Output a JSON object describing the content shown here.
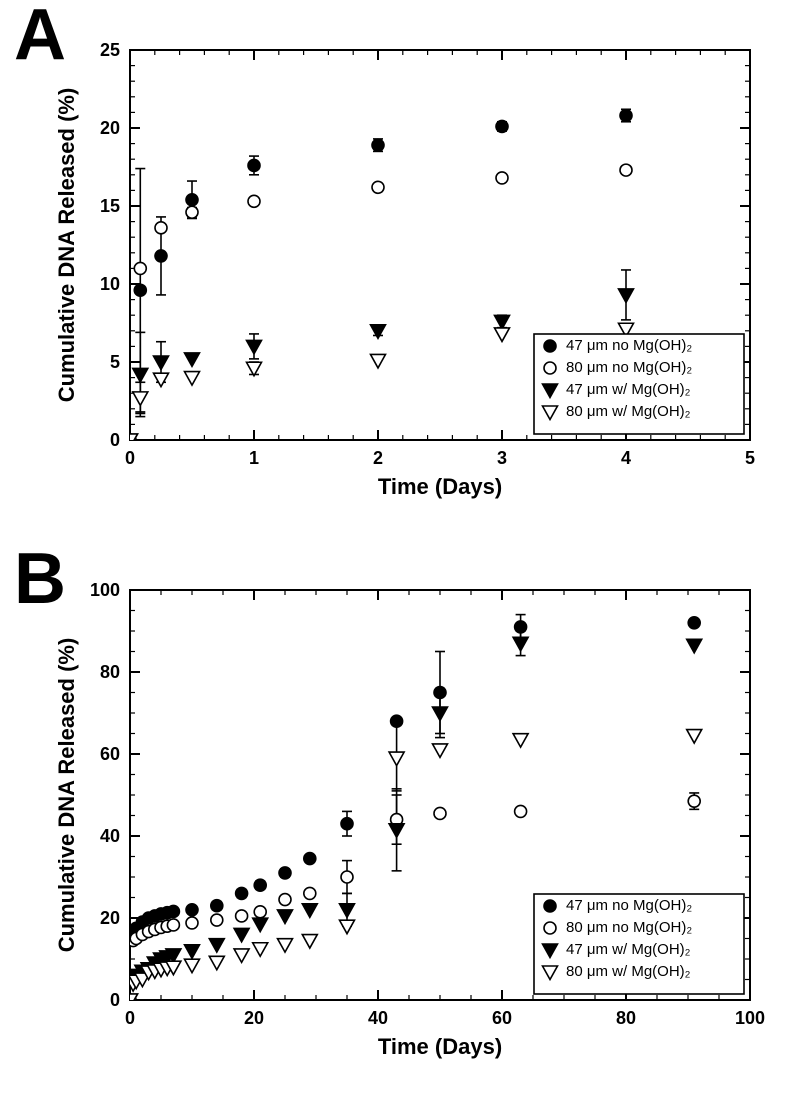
{
  "panel_labels": {
    "A": "A",
    "B": "B",
    "fontsize": 72,
    "fontweight": 900,
    "color": "#000000"
  },
  "chartA": {
    "type": "scatter",
    "title": "",
    "xlabel": "Time (Days)",
    "ylabel": "Cumulative DNA Released (%)",
    "label_fontsize": 22,
    "tick_fontsize": 18,
    "xlim": [
      0,
      5
    ],
    "xtick_step": 1,
    "ylim": [
      0,
      25
    ],
    "ytick_step": 5,
    "axis_color": "#000000",
    "background_color": "#ffffff",
    "minor_ticks_x": 0.2,
    "minor_ticks_y": 1,
    "marker_size": 6,
    "line_width": 1.6,
    "legend": {
      "position": "lower-right",
      "fontsize": 15,
      "border_color": "#000000",
      "items": [
        {
          "label": "47 μm no Mg(OH)₂",
          "marker": "circle",
          "fill": "#000000"
        },
        {
          "label": "80 μm no Mg(OH)₂",
          "marker": "circle",
          "fill": "#ffffff"
        },
        {
          "label": "47 μm w/ Mg(OH)₂",
          "marker": "triangle-down",
          "fill": "#000000"
        },
        {
          "label": "80 μm w/ Mg(OH)₂",
          "marker": "triangle-down",
          "fill": "#ffffff"
        }
      ]
    },
    "series": [
      {
        "name": "47 μm no Mg(OH)2",
        "marker": "circle",
        "fill": "#000000",
        "points": [
          {
            "x": 0.0,
            "y": 0.0,
            "err": 0
          },
          {
            "x": 0.083,
            "y": 9.6,
            "err": 7.8
          },
          {
            "x": 0.25,
            "y": 11.8,
            "err": 2.5
          },
          {
            "x": 0.5,
            "y": 15.4,
            "err": 1.2
          },
          {
            "x": 1.0,
            "y": 17.6,
            "err": 0.6
          },
          {
            "x": 2.0,
            "y": 18.9,
            "err": 0.4
          },
          {
            "x": 3.0,
            "y": 20.1,
            "err": 0.3
          },
          {
            "x": 4.0,
            "y": 20.8,
            "err": 0.4
          }
        ]
      },
      {
        "name": "80 μm no Mg(OH)2",
        "marker": "circle",
        "fill": "#ffffff",
        "points": [
          {
            "x": 0.0,
            "y": 0.0
          },
          {
            "x": 0.083,
            "y": 11.0
          },
          {
            "x": 0.25,
            "y": 13.6
          },
          {
            "x": 0.5,
            "y": 14.6,
            "err": 0.3
          },
          {
            "x": 1.0,
            "y": 15.3
          },
          {
            "x": 2.0,
            "y": 16.2
          },
          {
            "x": 3.0,
            "y": 16.8
          },
          {
            "x": 4.0,
            "y": 17.3
          }
        ]
      },
      {
        "name": "47 μm w/ Mg(OH)2",
        "marker": "triangle-down",
        "fill": "#000000",
        "points": [
          {
            "x": 0.0,
            "y": 0.0
          },
          {
            "x": 0.083,
            "y": 4.2,
            "err": 2.7
          },
          {
            "x": 0.25,
            "y": 5.0,
            "err": 1.3
          },
          {
            "x": 0.5,
            "y": 5.2
          },
          {
            "x": 1.0,
            "y": 6.0,
            "err": 0.8
          },
          {
            "x": 2.0,
            "y": 7.0,
            "err": 0.3
          },
          {
            "x": 3.0,
            "y": 7.6,
            "err": 0.4
          },
          {
            "x": 4.0,
            "y": 9.3,
            "err": 1.6
          }
        ]
      },
      {
        "name": "80 μm w/ Mg(OH)2",
        "marker": "triangle-down",
        "fill": "#ffffff",
        "points": [
          {
            "x": 0.0,
            "y": 0.0
          },
          {
            "x": 0.083,
            "y": 2.7,
            "err": 1.0
          },
          {
            "x": 0.25,
            "y": 3.9
          },
          {
            "x": 0.5,
            "y": 4.0
          },
          {
            "x": 1.0,
            "y": 4.6,
            "err": 0.4
          },
          {
            "x": 2.0,
            "y": 5.1
          },
          {
            "x": 3.0,
            "y": 6.8
          },
          {
            "x": 4.0,
            "y": 7.1
          }
        ]
      }
    ]
  },
  "chartB": {
    "type": "scatter",
    "title": "",
    "xlabel": "Time (Days)",
    "ylabel": "Cumulative DNA Released (%)",
    "label_fontsize": 22,
    "tick_fontsize": 18,
    "xlim": [
      0,
      100
    ],
    "xtick_step": 20,
    "ylim": [
      0,
      100
    ],
    "ytick_step": 20,
    "axis_color": "#000000",
    "background_color": "#ffffff",
    "minor_ticks_x": 5,
    "minor_ticks_y": 5,
    "marker_size": 6,
    "line_width": 1.6,
    "legend": {
      "position": "lower-right",
      "fontsize": 15,
      "border_color": "#000000",
      "items": [
        {
          "label": "47 μm no Mg(OH)₂",
          "marker": "circle",
          "fill": "#000000"
        },
        {
          "label": "80 μm no Mg(OH)₂",
          "marker": "circle",
          "fill": "#ffffff"
        },
        {
          "label": "47 μm w/ Mg(OH)₂",
          "marker": "triangle-down",
          "fill": "#000000"
        },
        {
          "label": "80 μm w/ Mg(OH)₂",
          "marker": "triangle-down",
          "fill": "#ffffff"
        }
      ]
    },
    "series": [
      {
        "name": "47 μm no Mg(OH)2",
        "marker": "circle",
        "fill": "#000000",
        "points": [
          {
            "x": 0,
            "y": 0
          },
          {
            "x": 0.5,
            "y": 15
          },
          {
            "x": 1,
            "y": 17.5
          },
          {
            "x": 2,
            "y": 19
          },
          {
            "x": 3,
            "y": 20
          },
          {
            "x": 4,
            "y": 20.5
          },
          {
            "x": 5,
            "y": 21
          },
          {
            "x": 6,
            "y": 21.3
          },
          {
            "x": 7,
            "y": 21.6
          },
          {
            "x": 10,
            "y": 22
          },
          {
            "x": 14,
            "y": 23,
            "err": 1.0
          },
          {
            "x": 18,
            "y": 26,
            "err": 1.0
          },
          {
            "x": 21,
            "y": 28,
            "err": 1.0
          },
          {
            "x": 25,
            "y": 31,
            "err": 1.0
          },
          {
            "x": 29,
            "y": 34.5
          },
          {
            "x": 35,
            "y": 43,
            "err": 3.0
          },
          {
            "x": 43,
            "y": 68,
            "err": 0.8
          },
          {
            "x": 50,
            "y": 75,
            "err": 10.0
          },
          {
            "x": 63,
            "y": 91,
            "err": 3.0
          },
          {
            "x": 91,
            "y": 92
          }
        ]
      },
      {
        "name": "80 μm no Mg(OH)2",
        "marker": "circle",
        "fill": "#ffffff",
        "points": [
          {
            "x": 0,
            "y": 0
          },
          {
            "x": 0.5,
            "y": 14.5
          },
          {
            "x": 1,
            "y": 15
          },
          {
            "x": 2,
            "y": 16
          },
          {
            "x": 3,
            "y": 16.7
          },
          {
            "x": 4,
            "y": 17.2
          },
          {
            "x": 5,
            "y": 17.7
          },
          {
            "x": 6,
            "y": 18
          },
          {
            "x": 7,
            "y": 18.3
          },
          {
            "x": 10,
            "y": 18.8
          },
          {
            "x": 14,
            "y": 19.5
          },
          {
            "x": 18,
            "y": 20.5
          },
          {
            "x": 21,
            "y": 21.5
          },
          {
            "x": 25,
            "y": 24.5
          },
          {
            "x": 29,
            "y": 26
          },
          {
            "x": 35,
            "y": 30,
            "err": 4.0
          },
          {
            "x": 43,
            "y": 44,
            "err": 6.0
          },
          {
            "x": 50,
            "y": 45.5
          },
          {
            "x": 63,
            "y": 46
          },
          {
            "x": 91,
            "y": 48.5,
            "err": 2.0
          }
        ]
      },
      {
        "name": "47 μm w/ Mg(OH)2",
        "marker": "triangle-down",
        "fill": "#000000",
        "points": [
          {
            "x": 0,
            "y": 0
          },
          {
            "x": 0.5,
            "y": 5
          },
          {
            "x": 1,
            "y": 6
          },
          {
            "x": 2,
            "y": 7
          },
          {
            "x": 3,
            "y": 7.6
          },
          {
            "x": 4,
            "y": 9
          },
          {
            "x": 5,
            "y": 10
          },
          {
            "x": 6,
            "y": 10.5
          },
          {
            "x": 7,
            "y": 11
          },
          {
            "x": 10,
            "y": 12
          },
          {
            "x": 14,
            "y": 13.5
          },
          {
            "x": 18,
            "y": 16
          },
          {
            "x": 21,
            "y": 18.5
          },
          {
            "x": 25,
            "y": 20.5
          },
          {
            "x": 29,
            "y": 22
          },
          {
            "x": 35,
            "y": 22,
            "err": 4.0
          },
          {
            "x": 43,
            "y": 41.5,
            "err": 10.0
          },
          {
            "x": 50,
            "y": 70,
            "err": 6.0
          },
          {
            "x": 63,
            "y": 87,
            "err": 3.0
          },
          {
            "x": 91,
            "y": 86.5
          }
        ]
      },
      {
        "name": "80 μm w/ Mg(OH)2",
        "marker": "triangle-down",
        "fill": "#ffffff",
        "points": [
          {
            "x": 0,
            "y": 0
          },
          {
            "x": 0.5,
            "y": 4
          },
          {
            "x": 1,
            "y": 4.6
          },
          {
            "x": 2,
            "y": 5.1
          },
          {
            "x": 3,
            "y": 6.8
          },
          {
            "x": 4,
            "y": 7.1
          },
          {
            "x": 5,
            "y": 7.5
          },
          {
            "x": 6,
            "y": 7.8
          },
          {
            "x": 7,
            "y": 8
          },
          {
            "x": 10,
            "y": 8.5
          },
          {
            "x": 14,
            "y": 9.2
          },
          {
            "x": 18,
            "y": 11
          },
          {
            "x": 21,
            "y": 12.5
          },
          {
            "x": 25,
            "y": 13.5
          },
          {
            "x": 29,
            "y": 14.5
          },
          {
            "x": 35,
            "y": 18
          },
          {
            "x": 43,
            "y": 59,
            "err": 8.0
          },
          {
            "x": 50,
            "y": 61
          },
          {
            "x": 63,
            "y": 63.5
          },
          {
            "x": 91,
            "y": 64.5
          }
        ]
      }
    ]
  }
}
